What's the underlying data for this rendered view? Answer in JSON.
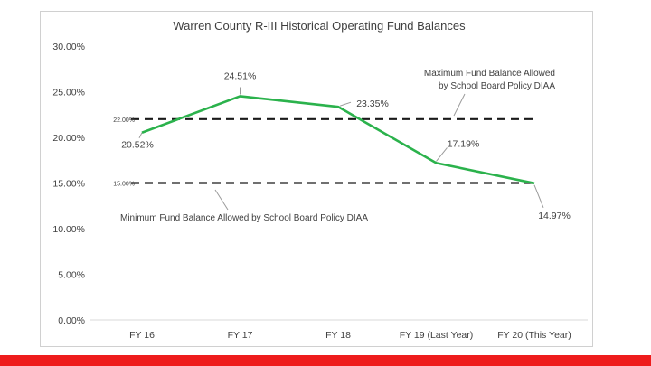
{
  "chart_data": {
    "type": "line",
    "title": "Warren County R-III Historical Operating Fund Balances",
    "xlabel": "",
    "ylabel": "",
    "categories": [
      "FY 16",
      "FY 17",
      "FY 18",
      "FY 19 (Last Year)",
      "FY 20 (This Year)"
    ],
    "ylim": [
      0,
      30
    ],
    "yticks": [
      "0.00%",
      "5.00%",
      "10.00%",
      "15.00%",
      "20.00%",
      "25.00%",
      "30.00%"
    ],
    "grid": false,
    "series": [
      {
        "name": "Operating Fund Balance",
        "values": [
          20.52,
          24.51,
          23.35,
          17.19,
          14.97
        ],
        "labels": [
          "20.52%",
          "24.51%",
          "23.35%",
          "17.19%",
          "14.97%"
        ],
        "color": "#2bb24c"
      }
    ],
    "reference_lines": [
      {
        "name": "max-line",
        "value": 22.0,
        "label": "22.00%",
        "annotation": "Maximum Fund Balance Allowed\nby School Board Policy DIAA"
      },
      {
        "name": "min-line",
        "value": 15.0,
        "label": "15.00%",
        "annotation": "Minimum Fund Balance Allowed by School Board Policy DIAA"
      }
    ]
  },
  "colors": {
    "line": "#2bb24c",
    "reference": "#1a1a1a",
    "text": "#404040",
    "bottom_bar": "#ee1c1c"
  }
}
